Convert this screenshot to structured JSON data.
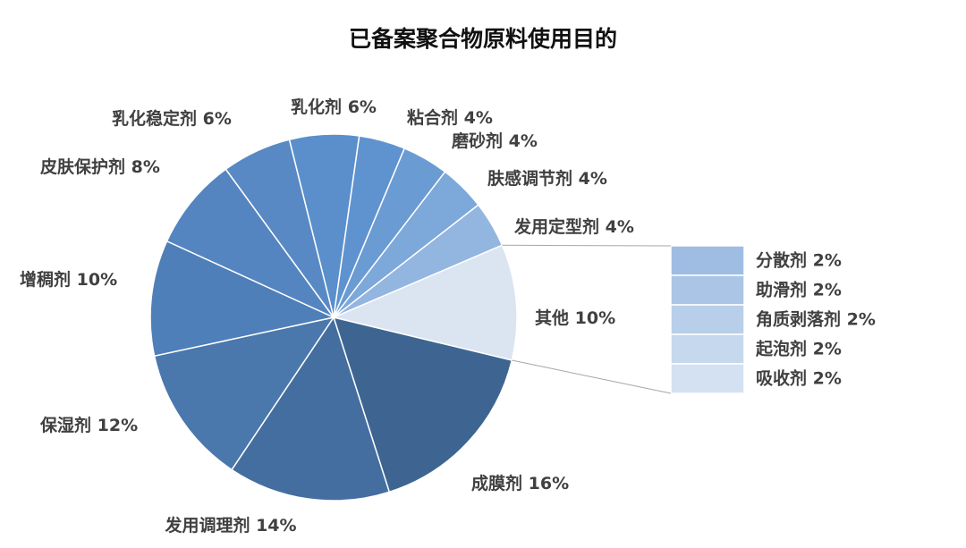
{
  "chart_data": {
    "type": "pie-of-bar",
    "title": "已备案聚合物原料使用目的",
    "categories": [
      "乳化剂",
      "粘合剂",
      "磨砂剂",
      "肤感调节剂",
      "发用定型剂",
      "其他",
      "成膜剂",
      "发用调理剂",
      "保湿剂",
      "增稠剂",
      "皮肤保护剂",
      "乳化稳定剂"
    ],
    "values": [
      6,
      4,
      4,
      4,
      4,
      10,
      16,
      14,
      12,
      10,
      8,
      6
    ],
    "value_labels": [
      "6%",
      "4%",
      "4%",
      "4%",
      "4%",
      "10%",
      "16%",
      "14%",
      "12%",
      "10%",
      "8%",
      "6%"
    ],
    "colors": [
      "#5b8fcb",
      "#5f93cf",
      "#6a9bd3",
      "#7ca8da",
      "#93b6e0",
      "#dbe4f1",
      "#3e6592",
      "#446ea0",
      "#4a78ad",
      "#4f7fb8",
      "#5585c0",
      "#5889c4"
    ],
    "breakdown": {
      "categories": [
        "分散剂",
        "助滑剂",
        "角质剥落剂",
        "起泡剂",
        "吸收剂"
      ],
      "values": [
        2,
        2,
        2,
        2,
        2
      ],
      "value_labels": [
        "2%",
        "2%",
        "2%",
        "2%",
        "2%"
      ],
      "colors": [
        "#9fbde3",
        "#aac5e6",
        "#b8cfea",
        "#c6d8ee",
        "#d4e1f2"
      ]
    }
  }
}
